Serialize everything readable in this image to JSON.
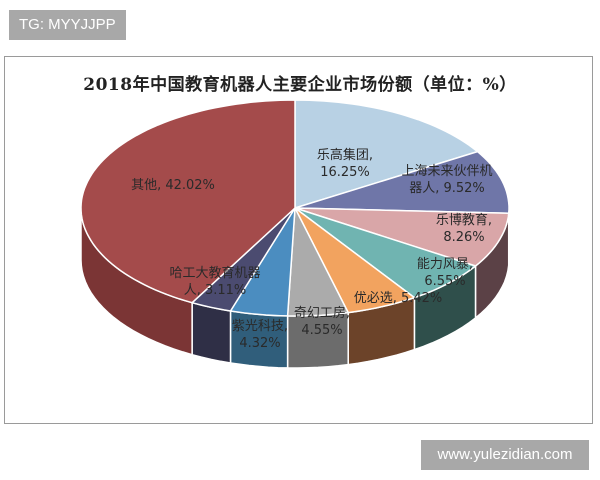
{
  "watermark_top": "TG: MYYJJPP",
  "watermark_bottom": "www.yulezidian.com",
  "chart_data": {
    "type": "pie",
    "title": "2018年中国教育机器人主要企业市场份额（单位：%）",
    "categories": [
      "乐高集团",
      "上海未来伙伴机器人",
      "乐博教育",
      "能力风暴",
      "优必选",
      "奇幻工房",
      "紫光科技",
      "哈工大教育机器人",
      "其他"
    ],
    "values": [
      16.25,
      9.52,
      8.26,
      6.55,
      5.42,
      4.55,
      4.32,
      3.11,
      42.02
    ],
    "unit": "%",
    "start_angle": "12 o'clock, clockwise",
    "style": "3D pie",
    "colors": [
      "#b8d1e4",
      "#6f76a8",
      "#d9a6a8",
      "#70b4b1",
      "#f2a35f",
      "#ababab",
      "#4b8dc0",
      "#4b4b70",
      "#a44b4b"
    ],
    "side_colors": [
      "#8aa3b6",
      "#4a4f75",
      "#5b4146",
      "#2f4f4b",
      "#6c4329",
      "#6c6c6c",
      "#305e7b",
      "#2f2f46",
      "#7b3535"
    ],
    "legend": "none (data labels on slices)"
  },
  "labels": {
    "lego": {
      "line1": "乐高集团,",
      "line2": "16.25%"
    },
    "shanghai": {
      "line1": "上海未来伙伴机",
      "line2": "器人, 9.52%"
    },
    "lebo": {
      "line1": "乐博教育,",
      "line2": "8.26%"
    },
    "nengli": {
      "line1": "能力风暴,",
      "line2": "6.55%"
    },
    "ubtech": {
      "line1": "优必选, 5.42%"
    },
    "qihuan": {
      "line1": "奇幻工房,",
      "line2": "4.55%"
    },
    "ziguang": {
      "line1": "紫光科技,",
      "line2": "4.32%"
    },
    "hagongda": {
      "line1": "哈工大教育机器",
      "line2": "人, 3.11%"
    },
    "other": {
      "line1": "其他, 42.02%"
    }
  }
}
